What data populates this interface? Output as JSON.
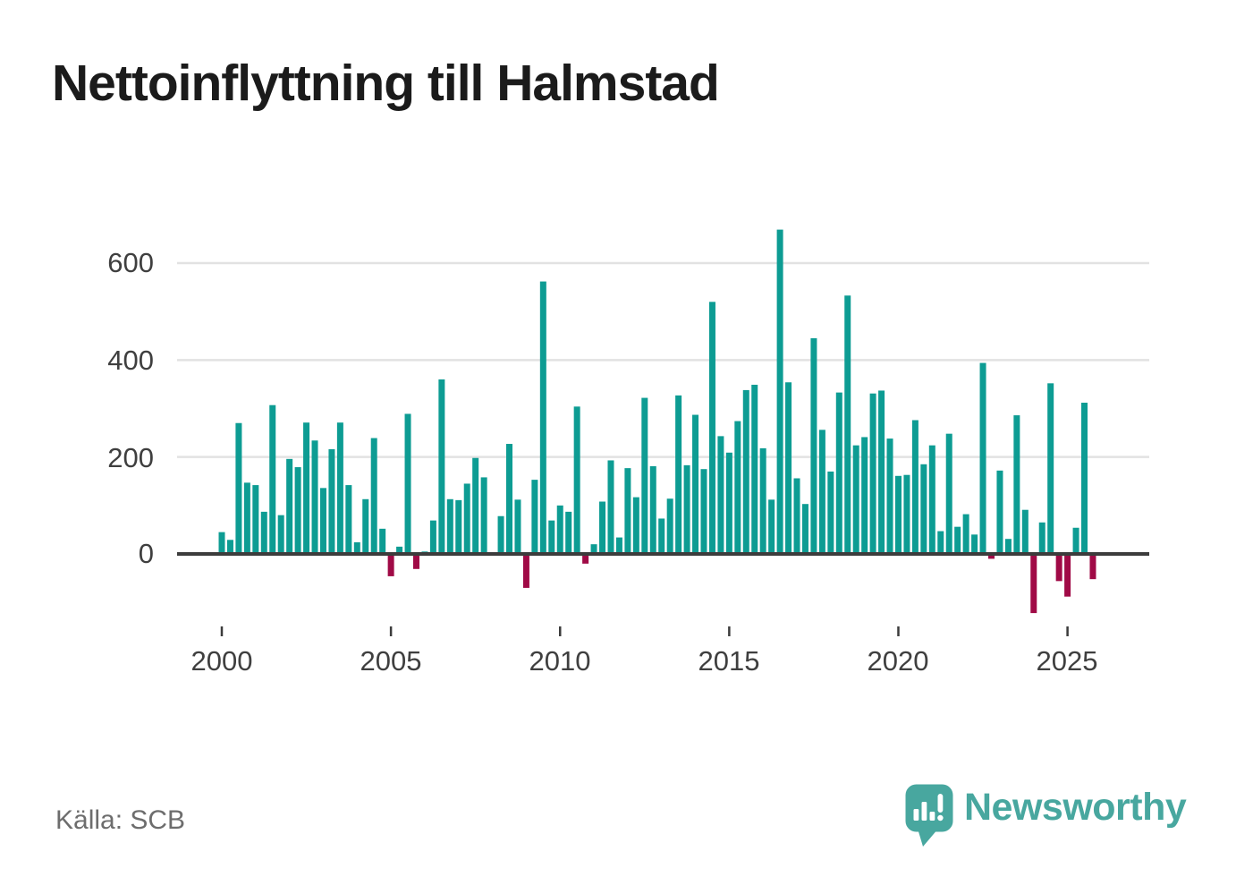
{
  "title": "Nettoinflyttning till Halmstad",
  "source": "Källa: SCB",
  "branding": {
    "name": "Newsworthy",
    "icon": "newsworthy-chart-bubble-icon"
  },
  "colors": {
    "positive": "#0d9c93",
    "negative": "#a00a46",
    "grid": "#e2e2e2",
    "axis": "#3c3c3c",
    "title": "#1b1b1b",
    "tick_label": "#3f3f3f",
    "source": "#6d6d6d",
    "brand": "#48a79f"
  },
  "chart_data": {
    "type": "bar",
    "title": "Nettoinflyttning till Halmstad",
    "x_unit": "quarter",
    "start": "2000-Q1",
    "end": "2025-Q4",
    "grid": true,
    "ylim": [
      -140,
      700
    ],
    "y_ticks": [
      0,
      200,
      400,
      600
    ],
    "y_tick_labels": [
      "0",
      "200",
      "400",
      "600"
    ],
    "x_tick_labels": [
      "2000",
      "2005",
      "2010",
      "2015",
      "2020",
      "2025"
    ],
    "series_name": "Nettoinflyttning",
    "years": [
      {
        "year": 2000,
        "q": [
          45,
          29,
          270,
          147
        ]
      },
      {
        "year": 2001,
        "q": [
          142,
          87,
          307,
          80
        ]
      },
      {
        "year": 2002,
        "q": [
          196,
          179,
          271,
          234
        ]
      },
      {
        "year": 2003,
        "q": [
          136,
          216,
          271,
          142
        ]
      },
      {
        "year": 2004,
        "q": [
          24,
          113,
          239,
          52
        ]
      },
      {
        "year": 2005,
        "q": [
          -46,
          15,
          289,
          -31
        ]
      },
      {
        "year": 2006,
        "q": [
          5,
          69,
          360,
          113
        ]
      },
      {
        "year": 2007,
        "q": [
          111,
          145,
          198,
          158
        ]
      },
      {
        "year": 2008,
        "q": [
          0,
          78,
          227,
          112
        ]
      },
      {
        "year": 2009,
        "q": [
          -70,
          153,
          562,
          69
        ]
      },
      {
        "year": 2010,
        "q": [
          100,
          87,
          304,
          -20
        ]
      },
      {
        "year": 2011,
        "q": [
          20,
          108,
          193,
          34
        ]
      },
      {
        "year": 2012,
        "q": [
          177,
          117,
          322,
          181
        ]
      },
      {
        "year": 2013,
        "q": [
          73,
          114,
          327,
          183
        ]
      },
      {
        "year": 2014,
        "q": [
          287,
          175,
          520,
          243
        ]
      },
      {
        "year": 2015,
        "q": [
          209,
          274,
          338,
          349
        ]
      },
      {
        "year": 2016,
        "q": [
          218,
          112,
          669,
          354
        ]
      },
      {
        "year": 2017,
        "q": [
          156,
          103,
          445,
          256
        ]
      },
      {
        "year": 2018,
        "q": [
          170,
          333,
          533,
          224
        ]
      },
      {
        "year": 2019,
        "q": [
          241,
          331,
          337,
          238
        ]
      },
      {
        "year": 2020,
        "q": [
          161,
          163,
          276,
          185
        ]
      },
      {
        "year": 2021,
        "q": [
          224,
          47,
          248,
          56
        ]
      },
      {
        "year": 2022,
        "q": [
          82,
          40,
          394,
          -10
        ]
      },
      {
        "year": 2023,
        "q": [
          172,
          31,
          286,
          91
        ]
      },
      {
        "year": 2024,
        "q": [
          -122,
          65,
          352,
          -56
        ]
      },
      {
        "year": 2025,
        "q": [
          -88,
          54,
          312,
          -52
        ]
      }
    ]
  }
}
